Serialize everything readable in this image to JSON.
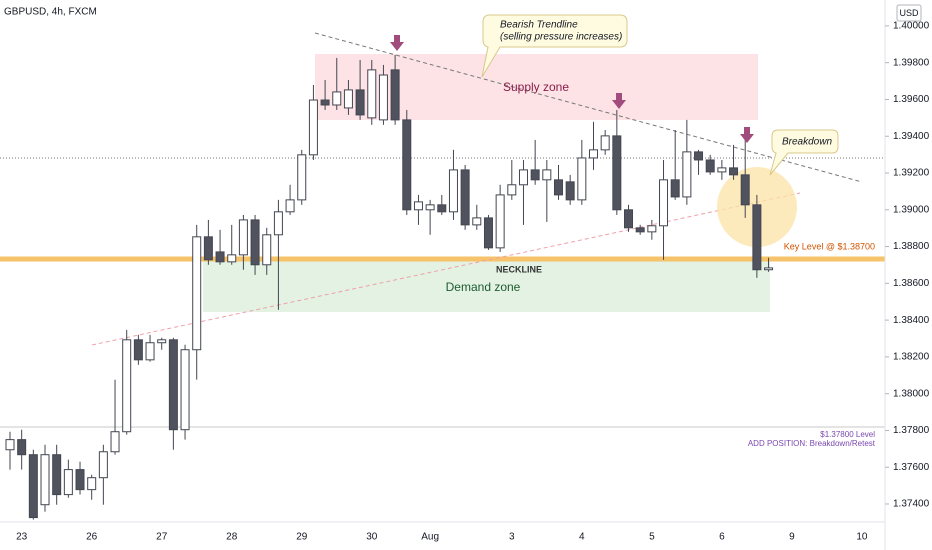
{
  "chart_data": {
    "type": "candlestick",
    "title": "GBPUSD, 4h, FXCM",
    "currency": "USD",
    "up_color": "#ffffff",
    "down_color": "#50535e",
    "wick_color": "#434651",
    "categories": [
      null,
      "23",
      null,
      null,
      null,
      null,
      null,
      "26",
      null,
      null,
      null,
      null,
      null,
      "27",
      null,
      null,
      null,
      null,
      null,
      "28",
      null,
      null,
      null,
      null,
      null,
      "29",
      null,
      null,
      null,
      null,
      null,
      "30",
      null,
      null,
      null,
      null,
      "Aug",
      null,
      null,
      null,
      null,
      null,
      null,
      "3",
      null,
      null,
      null,
      null,
      null,
      "4",
      null,
      null,
      null,
      null,
      null,
      "5",
      null,
      null,
      null,
      null,
      null,
      "6",
      null,
      null,
      null,
      null,
      null,
      "9",
      null,
      null,
      null,
      null,
      null,
      "10",
      null,
      null
    ],
    "open": [
      1.37695,
      1.3775,
      1.37668,
      1.37396,
      1.37668,
      1.37451,
      1.37587,
      1.37478,
      1.37543,
      1.37684,
      1.37793,
      1.38293,
      1.38184,
      1.38277,
      1.38293,
      1.37804,
      1.38239,
      1.38853,
      1.38771,
      1.38717,
      1.38755,
      1.38945,
      1.38701,
      1.38864,
      1.38989,
      1.39054,
      1.39299,
      1.39597,
      1.3957,
      1.39554,
      1.39652,
      1.395,
      1.39489,
      1.39761,
      1.39489,
      1.39,
      1.39,
      1.39027,
      1.38989,
      1.39217,
      1.38918,
      1.38956,
      1.38793,
      1.39081,
      1.39136,
      1.39217,
      1.39163,
      1.39163,
      1.39152,
      1.39054,
      1.39282,
      1.39326,
      1.39402,
      1.39,
      1.38902,
      1.3888,
      1.38913,
      1.39163,
      1.3907,
      1.39315,
      1.39271,
      1.39206,
      1.39228,
      1.3919,
      1.39027,
      1.38674,
      null,
      null,
      null,
      null,
      null,
      null,
      null,
      null,
      null,
      null
    ],
    "high": [
      1.37793,
      1.37804,
      1.37695,
      1.37722,
      1.37722,
      1.37641,
      1.3763,
      1.37559,
      1.37722,
      1.38076,
      1.38347,
      1.3832,
      1.3832,
      1.38304,
      1.38304,
      1.38266,
      1.38918,
      1.38945,
      1.38891,
      1.38918,
      1.38972,
      1.38972,
      1.38902,
      1.39054,
      1.39136,
      1.39326,
      1.39679,
      1.39706,
      1.39826,
      1.39706,
      1.39815,
      1.39815,
      1.39788,
      1.39842,
      1.39543,
      1.39081,
      1.39054,
      1.39081,
      1.39326,
      1.39244,
      1.39027,
      1.38972,
      1.39136,
      1.39271,
      1.39271,
      1.3938,
      1.39271,
      1.39244,
      1.3919,
      1.3938,
      1.39478,
      1.39434,
      1.39543,
      1.39027,
      1.38918,
      1.38945,
      1.39271,
      1.39434,
      1.39489,
      1.39326,
      1.39299,
      1.39271,
      1.39353,
      1.3938,
      1.39081,
      1.38739,
      null,
      null,
      null,
      null,
      null,
      null,
      null,
      null,
      null,
      null
    ],
    "low": [
      1.37587,
      1.37587,
      1.37315,
      1.37358,
      1.37396,
      1.37434,
      1.37451,
      1.37423,
      1.37396,
      1.37668,
      1.37777,
      1.38157,
      1.38174,
      1.38239,
      1.37695,
      1.3775,
      1.38076,
      1.38701,
      1.38701,
      1.38701,
      1.38674,
      1.38646,
      1.38646,
      1.38456,
      1.38972,
      1.39027,
      1.39271,
      1.39543,
      1.39543,
      1.39516,
      1.39489,
      1.39462,
      1.39462,
      1.39462,
      1.38972,
      1.38918,
      1.38864,
      1.38972,
      1.38945,
      1.38891,
      1.38891,
      1.38782,
      1.38771,
      1.39054,
      1.38918,
      1.39136,
      1.38934,
      1.39054,
      1.39027,
      1.39027,
      1.39217,
      1.39299,
      1.38972,
      1.3888,
      1.38864,
      1.38837,
      1.38728,
      1.39054,
      1.39027,
      1.3919,
      1.3919,
      1.39163,
      1.39163,
      1.38956,
      1.3863,
      1.38663,
      null,
      null,
      null,
      null,
      null,
      null,
      null,
      null,
      null,
      null
    ],
    "close": [
      1.3775,
      1.37668,
      1.37326,
      1.37668,
      1.37451,
      1.37587,
      1.37478,
      1.37543,
      1.37684,
      1.37793,
      1.38293,
      1.38184,
      1.38277,
      1.38293,
      1.37804,
      1.38239,
      1.38853,
      1.38728,
      1.38717,
      1.38755,
      1.38945,
      1.38701,
      1.38864,
      1.38989,
      1.39054,
      1.39299,
      1.39597,
      1.3957,
      1.39641,
      1.39652,
      1.39516,
      1.39761,
      1.39733,
      1.39489,
      1.39,
      1.39043,
      1.39027,
      1.38989,
      1.39217,
      1.38918,
      1.38956,
      1.38793,
      1.39081,
      1.39136,
      1.39217,
      1.39163,
      1.39217,
      1.39081,
      1.39054,
      1.39282,
      1.39326,
      1.39402,
      1.39,
      1.38902,
      1.3888,
      1.38913,
      1.39163,
      1.3907,
      1.39315,
      1.39271,
      1.39206,
      1.39228,
      1.3919,
      1.39027,
      1.38674,
      1.38684,
      null,
      null,
      null,
      null,
      null,
      null,
      null,
      null,
      null,
      null
    ],
    "ylim": [
      1.37302,
      1.40141
    ],
    "yticks": [
      {
        "value": 1.374,
        "label": "1.37400"
      },
      {
        "value": 1.376,
        "label": "1.37600"
      },
      {
        "value": 1.378,
        "label": "1.37800"
      },
      {
        "value": 1.38,
        "label": "1.38000"
      },
      {
        "value": 1.382,
        "label": "1.38200"
      },
      {
        "value": 1.384,
        "label": "1.38400"
      },
      {
        "value": 1.386,
        "label": "1.38600"
      },
      {
        "value": 1.388,
        "label": "1.38800"
      },
      {
        "value": 1.39,
        "label": "1.39000"
      },
      {
        "value": 1.392,
        "label": "1.39200"
      },
      {
        "value": 1.394,
        "label": "1.39400"
      },
      {
        "value": 1.396,
        "label": "1.39600"
      },
      {
        "value": 1.398,
        "label": "1.39800"
      },
      {
        "value": 1.4,
        "label": "1.40000"
      }
    ],
    "annotations": {
      "trendline_title": "Bearish Trendline",
      "trendline_note": "(selling pressure increases)",
      "supply": "Supply zone",
      "demand": "Demand zone",
      "neckline": "NECKLINE",
      "breakdown": "Breakdown",
      "key_level": "Key Level @ $1.38700",
      "level_2": "$1.37800 Level",
      "add_position": "ADD POSITION: Breakdown/Retest"
    }
  }
}
